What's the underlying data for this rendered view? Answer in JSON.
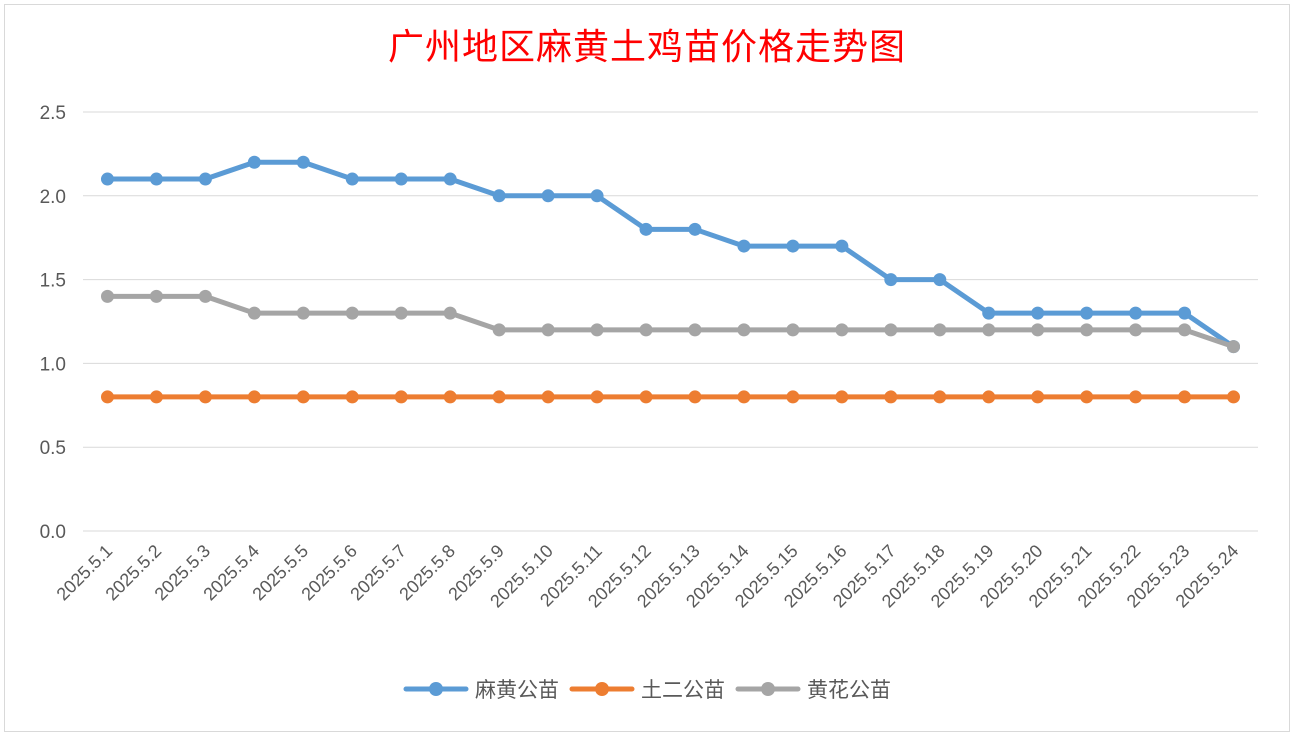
{
  "chart_data": {
    "type": "line",
    "title": "广州地区麻黄土鸡苗价格走势图",
    "categories": [
      "2025.5.1",
      "2025.5.2",
      "2025.5.3",
      "2025.5.4",
      "2025.5.5",
      "2025.5.6",
      "2025.5.7",
      "2025.5.8",
      "2025.5.9",
      "2025.5.10",
      "2025.5.11",
      "2025.5.12",
      "2025.5.13",
      "2025.5.14",
      "2025.5.15",
      "2025.5.16",
      "2025.5.17",
      "2025.5.18",
      "2025.5.19",
      "2025.5.20",
      "2025.5.21",
      "2025.5.22",
      "2025.5.23",
      "2025.5.24"
    ],
    "series": [
      {
        "name": "麻黄公苗",
        "color": "#5b9bd5",
        "values": [
          2.1,
          2.1,
          2.1,
          2.2,
          2.2,
          2.1,
          2.1,
          2.1,
          2.0,
          2.0,
          2.0,
          1.8,
          1.8,
          1.7,
          1.7,
          1.7,
          1.5,
          1.5,
          1.3,
          1.3,
          1.3,
          1.3,
          1.3,
          1.1
        ]
      },
      {
        "name": "土二公苗",
        "color": "#ed7d31",
        "values": [
          0.8,
          0.8,
          0.8,
          0.8,
          0.8,
          0.8,
          0.8,
          0.8,
          0.8,
          0.8,
          0.8,
          0.8,
          0.8,
          0.8,
          0.8,
          0.8,
          0.8,
          0.8,
          0.8,
          0.8,
          0.8,
          0.8,
          0.8,
          0.8
        ]
      },
      {
        "name": "黄花公苗",
        "color": "#a5a5a5",
        "values": [
          1.4,
          1.4,
          1.4,
          1.3,
          1.3,
          1.3,
          1.3,
          1.3,
          1.2,
          1.2,
          1.2,
          1.2,
          1.2,
          1.2,
          1.2,
          1.2,
          1.2,
          1.2,
          1.2,
          1.2,
          1.2,
          1.2,
          1.2,
          1.1
        ]
      }
    ],
    "ylim": [
      0,
      2.5
    ],
    "yticks": [
      "0.0",
      "0.5",
      "1.0",
      "1.5",
      "2.0",
      "2.5"
    ],
    "grid": true,
    "legend_position": "bottom"
  }
}
